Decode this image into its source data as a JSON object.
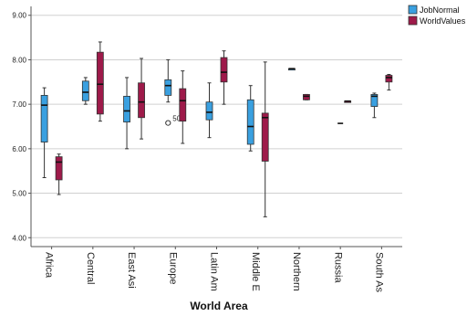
{
  "chart_data": {
    "type": "boxplot",
    "title": "",
    "xlabel": "World Area",
    "ylabel": "",
    "ylim": [
      3.8,
      9.2
    ],
    "yticks": [
      "4.00",
      "5.00",
      "6.00",
      "7.00",
      "8.00",
      "9.00"
    ],
    "grid": "horizontal",
    "legend_position": "top-right",
    "categories": [
      "Africa",
      "Central",
      "East Asi",
      "Europe",
      "Latin Am",
      "Middle E",
      "Northern",
      "Russia",
      "South As"
    ],
    "series": [
      {
        "name": "JobNormal",
        "color": "#3aa0e0",
        "boxes": [
          {
            "min": 5.35,
            "q1": 6.15,
            "median": 6.98,
            "q3": 7.2,
            "max": 7.37
          },
          {
            "min": 7.0,
            "q1": 7.08,
            "median": 7.27,
            "q3": 7.52,
            "max": 7.6
          },
          {
            "min": 6.0,
            "q1": 6.6,
            "median": 6.85,
            "q3": 7.18,
            "max": 7.6
          },
          {
            "min": 7.05,
            "q1": 7.2,
            "median": 7.42,
            "q3": 7.55,
            "max": 8.0
          },
          {
            "min": 6.25,
            "q1": 6.65,
            "median": 6.82,
            "q3": 7.05,
            "max": 7.48
          },
          {
            "min": 5.95,
            "q1": 6.1,
            "median": 6.5,
            "q3": 7.1,
            "max": 7.42
          },
          {
            "min": 7.8,
            "q1": 7.8,
            "median": 7.8,
            "q3": 7.8,
            "max": 7.8
          },
          null,
          {
            "min": 6.7,
            "q1": 6.95,
            "median": 7.18,
            "q3": 7.22,
            "max": 7.25
          }
        ],
        "outliers": [
          {
            "category": "Europe",
            "value": 6.58,
            "label": "50"
          }
        ]
      },
      {
        "name": "WorldValues",
        "color": "#9e1a4a",
        "boxes": [
          {
            "min": 4.97,
            "q1": 5.3,
            "median": 5.7,
            "q3": 5.82,
            "max": 5.88
          },
          {
            "min": 6.62,
            "q1": 6.78,
            "median": 7.45,
            "q3": 8.17,
            "max": 8.4
          },
          {
            "min": 6.22,
            "q1": 6.7,
            "median": 7.05,
            "q3": 7.48,
            "max": 8.03
          },
          {
            "min": 6.12,
            "q1": 6.62,
            "median": 7.08,
            "q3": 7.35,
            "max": 7.75
          },
          {
            "min": 7.0,
            "q1": 7.5,
            "median": 7.72,
            "q3": 8.05,
            "max": 8.2
          },
          {
            "min": 4.47,
            "q1": 5.72,
            "median": 6.7,
            "q3": 6.8,
            "max": 7.95
          },
          {
            "min": 7.1,
            "q1": 7.1,
            "median": 7.18,
            "q3": 7.22,
            "max": 7.22
          },
          {
            "min": 7.07,
            "q1": 7.07,
            "median": 7.07,
            "q3": 7.07,
            "max": 7.07
          },
          {
            "min": 7.32,
            "q1": 7.5,
            "median": 7.6,
            "q3": 7.65,
            "max": 7.67
          }
        ],
        "outliers": []
      }
    ],
    "single_lines": [
      {
        "category": "Russia",
        "value": 6.57
      }
    ]
  }
}
